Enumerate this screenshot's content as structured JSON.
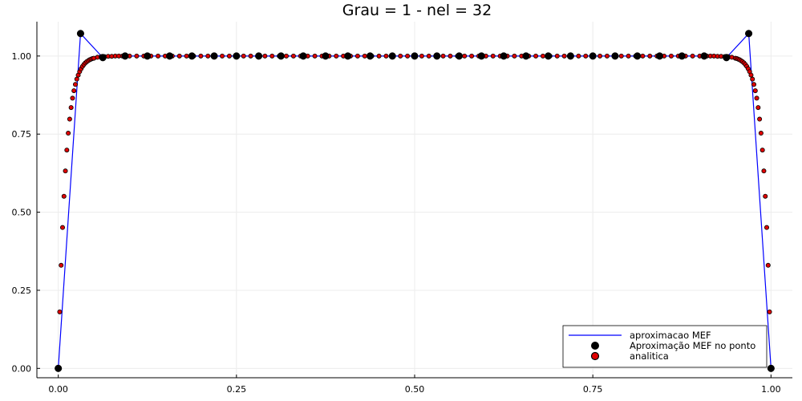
{
  "chart_data": {
    "type": "line",
    "title": "Grau = 1 - nel = 32",
    "xlabel": "",
    "ylabel": "",
    "xlim": [
      -0.03,
      1.03
    ],
    "ylim": [
      -0.03,
      1.11
    ],
    "xticks": [
      0.0,
      0.25,
      0.5,
      0.75,
      1.0
    ],
    "xtick_labels": [
      "0.00",
      "0.25",
      "0.50",
      "0.75",
      "1.00"
    ],
    "yticks": [
      0.0,
      0.25,
      0.5,
      0.75,
      1.0
    ],
    "ytick_labels": [
      "0.00",
      "0.25",
      "0.50",
      "0.75",
      "1.00"
    ],
    "grid": true,
    "legend_position": "bottom-right",
    "colors": {
      "line": "#0000ff",
      "nodes": "#000000",
      "analytic_fill": "#e00000",
      "analytic_edge": "#000000",
      "grid": "#ececec"
    },
    "series": [
      {
        "name": "aproximacao MEF",
        "kind": "line",
        "x": [
          0.0,
          0.03125,
          0.0625,
          0.09375,
          0.125,
          0.15625,
          0.1875,
          0.21875,
          0.25,
          0.28125,
          0.3125,
          0.34375,
          0.375,
          0.40625,
          0.4375,
          0.46875,
          0.5,
          0.53125,
          0.5625,
          0.59375,
          0.625,
          0.65625,
          0.6875,
          0.71875,
          0.75,
          0.78125,
          0.8125,
          0.84375,
          0.875,
          0.90625,
          0.9375,
          0.96875,
          1.0
        ],
        "y": [
          0.0,
          1.072,
          0.995,
          1.0,
          1.0,
          1.0,
          1.0,
          1.0,
          1.0,
          1.0,
          1.0,
          1.0,
          1.0,
          1.0,
          1.0,
          1.0,
          1.0,
          1.0,
          1.0,
          1.0,
          1.0,
          1.0,
          1.0,
          1.0,
          1.0,
          1.0,
          1.0,
          1.0,
          1.0,
          1.0,
          0.995,
          1.072,
          0.0
        ]
      },
      {
        "name": "Aproximação MEF no ponto",
        "kind": "scatter",
        "x": [
          0.0,
          0.03125,
          0.0625,
          0.09375,
          0.125,
          0.15625,
          0.1875,
          0.21875,
          0.25,
          0.28125,
          0.3125,
          0.34375,
          0.375,
          0.40625,
          0.4375,
          0.46875,
          0.5,
          0.53125,
          0.5625,
          0.59375,
          0.625,
          0.65625,
          0.6875,
          0.71875,
          0.75,
          0.78125,
          0.8125,
          0.84375,
          0.875,
          0.90625,
          0.9375,
          0.96875,
          1.0
        ],
        "y": [
          0.0,
          1.072,
          0.995,
          1.0,
          1.0,
          1.0,
          1.0,
          1.0,
          1.0,
          1.0,
          1.0,
          1.0,
          1.0,
          1.0,
          1.0,
          1.0,
          1.0,
          1.0,
          1.0,
          1.0,
          1.0,
          1.0,
          1.0,
          1.0,
          1.0,
          1.0,
          1.0,
          1.0,
          1.0,
          1.0,
          0.995,
          1.072,
          0.0
        ]
      },
      {
        "name": "analitica",
        "kind": "scatter",
        "x": [
          0.0,
          0.002,
          0.004,
          0.006,
          0.008,
          0.01,
          0.012,
          0.014,
          0.016,
          0.018,
          0.02,
          0.022,
          0.024,
          0.026,
          0.028,
          0.03,
          0.032,
          0.034,
          0.036,
          0.038,
          0.04,
          0.042,
          0.044,
          0.046,
          0.048,
          0.05,
          0.055,
          0.06,
          0.065,
          0.07,
          0.075,
          0.08,
          0.085,
          0.09,
          0.1,
          0.11,
          0.12,
          0.13,
          0.14,
          0.15,
          0.16,
          0.17,
          0.18,
          0.19,
          0.2,
          0.21,
          0.22,
          0.23,
          0.24,
          0.25,
          0.26,
          0.27,
          0.28,
          0.29,
          0.3,
          0.31,
          0.32,
          0.33,
          0.34,
          0.35,
          0.36,
          0.37,
          0.38,
          0.39,
          0.4,
          0.41,
          0.42,
          0.43,
          0.44,
          0.45,
          0.46,
          0.47,
          0.48,
          0.49,
          0.5,
          0.51,
          0.52,
          0.53,
          0.54,
          0.55,
          0.56,
          0.57,
          0.58,
          0.59,
          0.6,
          0.61,
          0.62,
          0.63,
          0.64,
          0.65,
          0.66,
          0.67,
          0.68,
          0.69,
          0.7,
          0.71,
          0.72,
          0.73,
          0.74,
          0.75,
          0.76,
          0.77,
          0.78,
          0.79,
          0.8,
          0.81,
          0.82,
          0.83,
          0.84,
          0.85,
          0.86,
          0.87,
          0.88,
          0.89,
          0.9,
          0.91,
          0.915,
          0.92,
          0.925,
          0.93,
          0.935,
          0.94,
          0.945,
          0.95,
          0.952,
          0.954,
          0.956,
          0.958,
          0.96,
          0.962,
          0.964,
          0.966,
          0.968,
          0.97,
          0.972,
          0.974,
          0.976,
          0.978,
          0.98,
          0.982,
          0.984,
          0.986,
          0.988,
          0.99,
          0.992,
          0.994,
          0.996,
          0.998,
          1.0
        ],
        "y": [
          0.0,
          0.181,
          0.33,
          0.451,
          0.551,
          0.632,
          0.699,
          0.753,
          0.798,
          0.835,
          0.865,
          0.889,
          0.909,
          0.926,
          0.939,
          0.95,
          0.959,
          0.967,
          0.973,
          0.978,
          0.982,
          0.985,
          0.988,
          0.99,
          0.992,
          0.993,
          0.996,
          0.998,
          0.998,
          0.999,
          0.999,
          1.0,
          1.0,
          1.0,
          1.0,
          1.0,
          1.0,
          1.0,
          1.0,
          1.0,
          1.0,
          1.0,
          1.0,
          1.0,
          1.0,
          1.0,
          1.0,
          1.0,
          1.0,
          1.0,
          1.0,
          1.0,
          1.0,
          1.0,
          1.0,
          1.0,
          1.0,
          1.0,
          1.0,
          1.0,
          1.0,
          1.0,
          1.0,
          1.0,
          1.0,
          1.0,
          1.0,
          1.0,
          1.0,
          1.0,
          1.0,
          1.0,
          1.0,
          1.0,
          1.0,
          1.0,
          1.0,
          1.0,
          1.0,
          1.0,
          1.0,
          1.0,
          1.0,
          1.0,
          1.0,
          1.0,
          1.0,
          1.0,
          1.0,
          1.0,
          1.0,
          1.0,
          1.0,
          1.0,
          1.0,
          1.0,
          1.0,
          1.0,
          1.0,
          1.0,
          1.0,
          1.0,
          1.0,
          1.0,
          1.0,
          1.0,
          1.0,
          1.0,
          1.0,
          1.0,
          1.0,
          1.0,
          1.0,
          1.0,
          1.0,
          1.0,
          1.0,
          1.0,
          0.999,
          0.999,
          0.998,
          0.998,
          0.996,
          0.993,
          0.992,
          0.99,
          0.988,
          0.985,
          0.982,
          0.978,
          0.973,
          0.967,
          0.959,
          0.95,
          0.939,
          0.926,
          0.909,
          0.889,
          0.865,
          0.835,
          0.798,
          0.753,
          0.699,
          0.632,
          0.551,
          0.451,
          0.33,
          0.181,
          0.0
        ]
      }
    ]
  }
}
